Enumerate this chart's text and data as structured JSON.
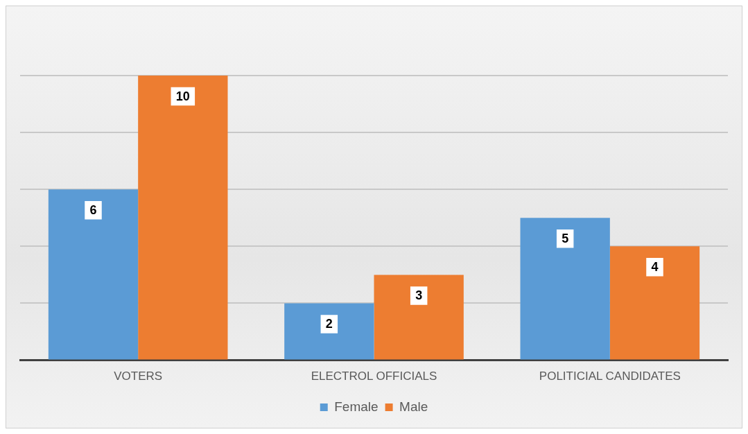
{
  "chart_data": {
    "type": "bar",
    "categories": [
      "VOTERS",
      "ELECTROL OFFICIALS",
      "POLITICIAL CANDIDATES"
    ],
    "series": [
      {
        "name": "Female",
        "color": "#5b9bd5",
        "values": [
          6,
          2,
          5
        ]
      },
      {
        "name": "Male",
        "color": "#ed7d31",
        "values": [
          10,
          3,
          4
        ]
      }
    ],
    "yticks": [
      {
        "value": 0,
        "label": null
      },
      {
        "value": 2,
        "label": null
      },
      {
        "value": 4,
        "label": null
      },
      {
        "value": 6,
        "label": null
      },
      {
        "value": 8,
        "label": null
      },
      {
        "value": 10,
        "label": null
      }
    ],
    "tick_labels": "x",
    "grid": "y",
    "legend": "bottom",
    "data_labels": true
  }
}
